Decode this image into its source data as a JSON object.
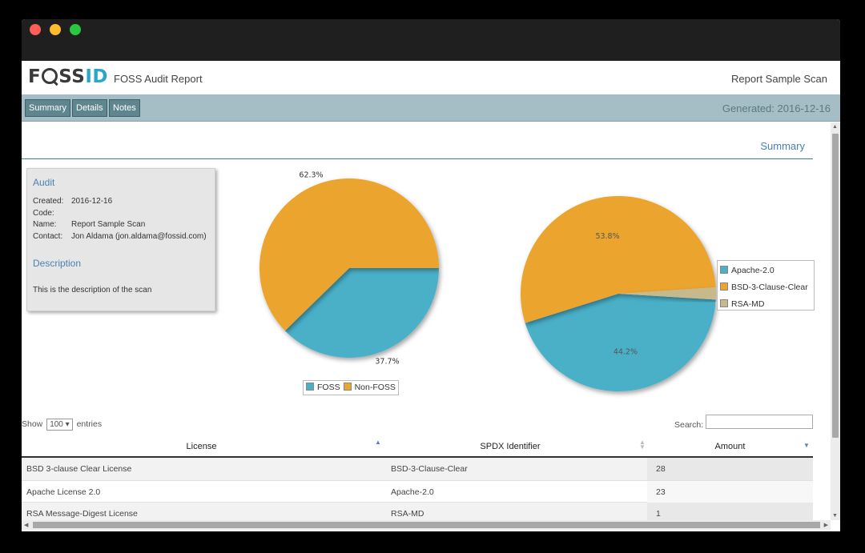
{
  "header": {
    "logo": {
      "left": "F",
      "right": "SS",
      "accent": "ID"
    },
    "app_title": "FOSS Audit Report",
    "scan_title": "Report Sample Scan"
  },
  "nav": {
    "tabs": [
      {
        "label": "Summary"
      },
      {
        "label": "Details"
      },
      {
        "label": "Notes"
      }
    ],
    "generated": "Generated: 2016-12-16"
  },
  "summary": {
    "heading": "Summary"
  },
  "audit": {
    "title": "Audit",
    "rows": [
      {
        "key": "Created:",
        "value": "2016-12-16"
      },
      {
        "key": "Code:",
        "value": ""
      },
      {
        "key": "Name:",
        "value": "Report Sample Scan"
      },
      {
        "key": "Contact:",
        "value": "Jon Aldama (jon.aldama@fossid.com)"
      }
    ],
    "description_title": "Description",
    "description": "This is the description of the scan"
  },
  "chart_data": [
    {
      "type": "pie",
      "series": [
        {
          "name": "FOSS",
          "value": 37.7,
          "label": "37.7%",
          "color": "#4ab0c8"
        },
        {
          "name": "Non-FOSS",
          "value": 62.3,
          "label": "62.3%",
          "color": "#eba42e"
        }
      ],
      "legend": "bottom"
    },
    {
      "type": "pie",
      "series": [
        {
          "name": "Apache-2.0",
          "value": 44.2,
          "label": "44.2%",
          "color": "#4ab0c8"
        },
        {
          "name": "BSD-3-Clause-Clear",
          "value": 53.8,
          "label": "53.8%",
          "color": "#eba42e"
        },
        {
          "name": "RSA-MD",
          "value": 2.0,
          "label": "",
          "color": "#c8b98c"
        }
      ],
      "legend": "right"
    }
  ],
  "table": {
    "show_label": "Show",
    "entries_value": "100 ▾",
    "entries_label": "entries",
    "search_label": "Search:",
    "search_value": "",
    "columns": [
      "License",
      "SPDX Identifier",
      "Amount"
    ],
    "rows": [
      {
        "license": "BSD 3-clause Clear License",
        "spdx": "BSD-3-Clause-Clear",
        "amount": "28"
      },
      {
        "license": "Apache License 2.0",
        "spdx": "Apache-2.0",
        "amount": "23"
      },
      {
        "license": "RSA Message-Digest License",
        "spdx": "RSA-MD",
        "amount": "1"
      }
    ]
  },
  "icons": {
    "sort_up": "▲",
    "sort_both": "▲▼",
    "sort_down": "▼",
    "scroll_up": "▲",
    "scroll_down": "▼",
    "scroll_left": "◀",
    "scroll_right": "▶"
  }
}
